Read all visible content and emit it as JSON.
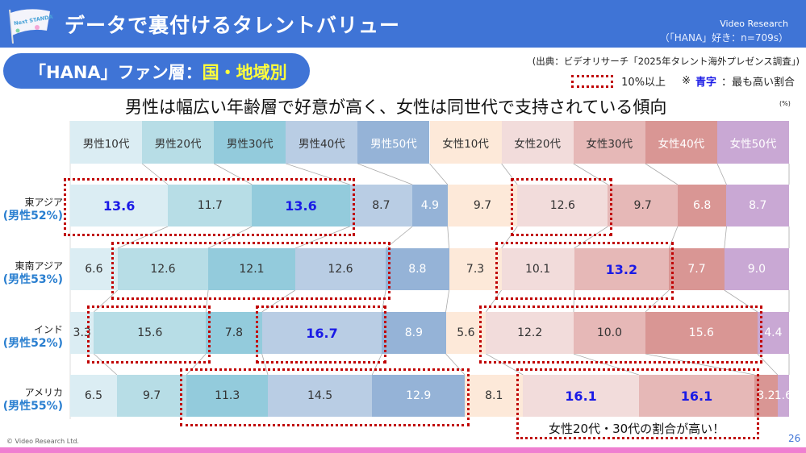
{
  "header": {
    "title": "データで裏付けるタレントバリュー",
    "logo_text": "Video Research",
    "sample": "（「HANA」好き：n=709s）",
    "flag_text": "Next STANDARD"
  },
  "section": {
    "label": "「HANA」ファン層：",
    "highlight": "国・地域別"
  },
  "source": "(出典：ビデオリサーチ「2025年タレント海外プレゼンス調査」)",
  "legend": {
    "box_label": "10%以上",
    "note_prefix": "※",
    "blue_word": "青字",
    "note_suffix": "：最も高い割合"
  },
  "footer": {
    "copyright": "© Video Research Ltd.",
    "page": "26"
  },
  "annotation": "女性20代・30代の割合が高い！",
  "chart_data": {
    "type": "bar",
    "orientation": "horizontal-stacked-100",
    "title": "男性は幅広い年齢層で好意が高く、女性は同世代で支持されている傾向",
    "unit": "(%)",
    "categories": [
      "男性10代",
      "男性20代",
      "男性30代",
      "男性40代",
      "男性50代",
      "女性10代",
      "女性20代",
      "女性30代",
      "女性40代",
      "女性50代"
    ],
    "colors": [
      "#dbedf3",
      "#b7dde6",
      "#93cbdc",
      "#b9cde4",
      "#95b3d7",
      "#fde9d9",
      "#f2dcdb",
      "#e6b8b7",
      "#d99694",
      "#c9a8d4"
    ],
    "text_white": [
      false,
      false,
      false,
      false,
      true,
      false,
      false,
      false,
      true,
      true
    ],
    "highlight_threshold": 10,
    "rows": [
      {
        "name": "東アジア",
        "male_share": "(男性52%)",
        "values": [
          13.6,
          11.7,
          13.6,
          8.7,
          4.9,
          9.7,
          12.6,
          9.7,
          6.8,
          8.7
        ]
      },
      {
        "name": "東南アジア",
        "male_share": "(男性53%)",
        "values": [
          6.6,
          12.6,
          12.1,
          12.6,
          8.8,
          7.3,
          10.1,
          13.2,
          7.7,
          9.0
        ]
      },
      {
        "name": "インド",
        "male_share": "(男性52%)",
        "values": [
          3.3,
          15.6,
          7.8,
          16.7,
          8.9,
          5.6,
          12.2,
          10.0,
          15.6,
          4.4
        ]
      },
      {
        "name": "アメリカ",
        "male_share": "(男性55%)",
        "values": [
          6.5,
          9.7,
          11.3,
          14.5,
          12.9,
          8.1,
          16.1,
          16.1,
          3.2,
          1.6
        ]
      }
    ]
  }
}
